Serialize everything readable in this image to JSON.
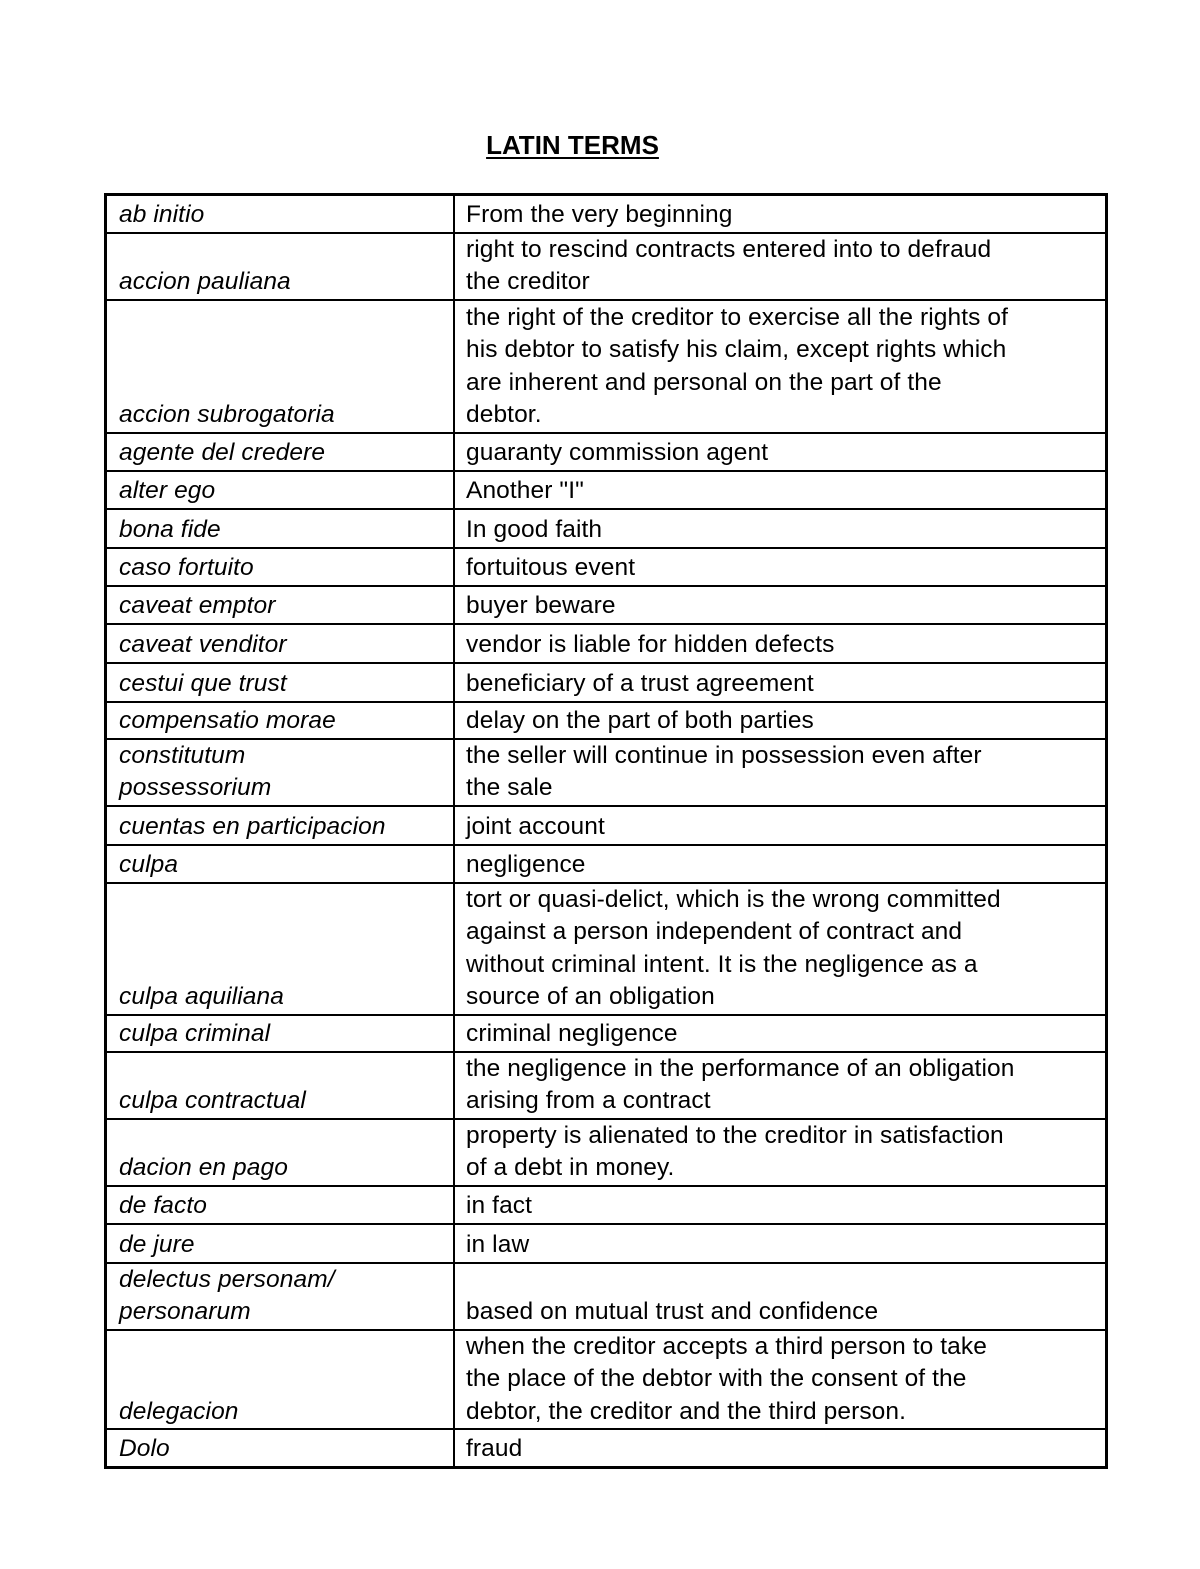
{
  "title": "LATIN TERMS",
  "rows": [
    {
      "term": "ab initio",
      "definition": "From the very beginning"
    },
    {
      "term": "accion pauliana",
      "definition": "right to rescind contracts entered into to defraud\nthe creditor"
    },
    {
      "term": "accion subrogatoria",
      "definition": "the right of the creditor to exercise all the rights of\nhis debtor to satisfy his claim,  except rights which\nare inherent and personal on the part of the\ndebtor."
    },
    {
      "term": "agente del credere",
      "definition": "guaranty commission agent"
    },
    {
      "term": "alter ego",
      "definition": "Another \"I\""
    },
    {
      "term": "bona fide",
      "definition": "In good faith"
    },
    {
      "term": "caso fortuito",
      "definition": "fortuitous event"
    },
    {
      "term": "caveat emptor",
      "definition": "buyer beware"
    },
    {
      "term": "caveat venditor",
      "definition": "vendor is liable for hidden defects"
    },
    {
      "term": "cestui que trust",
      "definition": "beneficiary of a trust agreement"
    },
    {
      "term": "compensatio morae",
      "definition": "delay on the part of both parties"
    },
    {
      "term": "constitutum\npossessorium",
      "definition": "the seller will continue in possession even after\nthe sale"
    },
    {
      "term": "cuentas en participacion",
      "definition": "joint account"
    },
    {
      "term": "culpa",
      "definition": "negligence"
    },
    {
      "term": "culpa aquiliana",
      "definition": "tort or quasi-delict, which is the wrong committed\nagainst a person independent of contract and\nwithout criminal intent. It is the negligence as a\nsource of an obligation"
    },
    {
      "term": "culpa criminal",
      "definition": "criminal negligence"
    },
    {
      "term": "culpa contractual",
      "definition": "the negligence in the performance of an obligation\narising from a contract"
    },
    {
      "term": "dacion en pago",
      "definition": "property is alienated to the  creditor in satisfaction\nof a debt in money."
    },
    {
      "term": "de facto",
      "definition": "in fact"
    },
    {
      "term": "de jure",
      "definition": "in law"
    },
    {
      "term": "delectus personam/\npersonarum",
      "definition": "based on mutual trust and confidence"
    },
    {
      "term": "delegacion",
      "definition": "when the creditor accepts a third person to take\nthe place of the debtor with the consent of the\ndebtor, the creditor and the third person."
    },
    {
      "term": " Dolo",
      "definition": "fraud"
    }
  ]
}
